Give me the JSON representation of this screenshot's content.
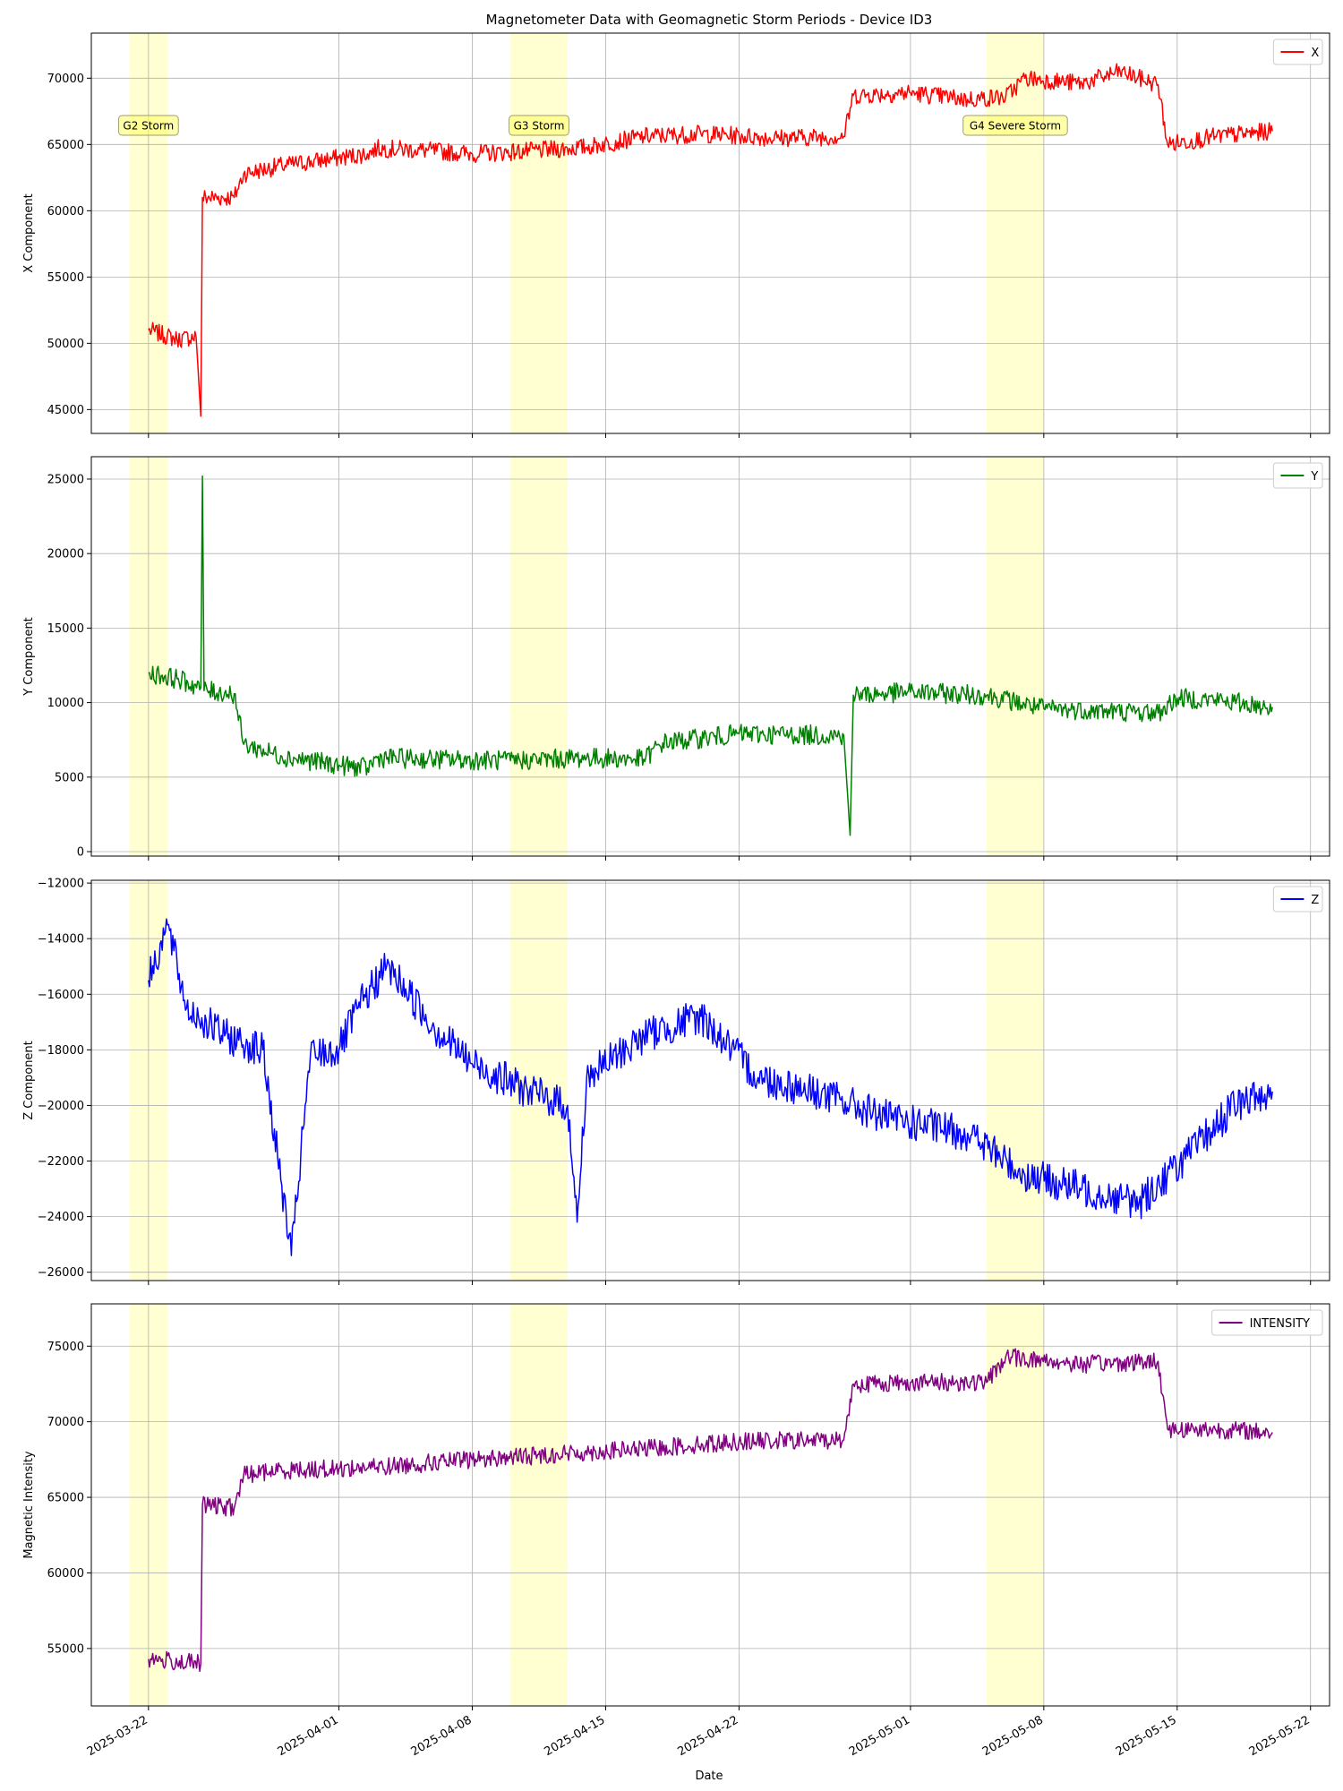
{
  "title": "Magnetometer Data with Geomagnetic Storm Periods - Device ID3",
  "xlabel": "Date",
  "x_tick_labels": [
    "2025-03-22",
    "2025-04-01",
    "2025-04-08",
    "2025-04-15",
    "2025-04-22",
    "2025-05-01",
    "2025-05-08",
    "2025-05-15",
    "2025-05-22"
  ],
  "chart_data": [
    {
      "type": "line",
      "series": [
        {
          "name": "X",
          "color": "#ff0000"
        }
      ],
      "ylabel": "X Component",
      "ylim": [
        43200,
        73400
      ],
      "y_ticks": [
        45000,
        50000,
        55000,
        60000,
        65000,
        70000
      ],
      "x_range": [
        "2025-03-19",
        "2025-05-23"
      ],
      "grid": true,
      "legend": "top-right",
      "storms": [
        {
          "start": "2025-03-21",
          "end": "2025-03-23",
          "label": "G2 Storm"
        },
        {
          "start": "2025-04-10",
          "end": "2025-04-13",
          "label": "G3 Storm"
        },
        {
          "start": "2025-05-05",
          "end": "2025-05-08",
          "label": "G4 Severe Storm"
        }
      ],
      "points": [
        [
          "2025-03-22T00:00",
          51000
        ],
        [
          "2025-03-23T12:00",
          50300
        ],
        [
          "2025-03-24T12:00",
          50500
        ],
        [
          "2025-03-24T18:00",
          44500
        ],
        [
          "2025-03-24T20:00",
          61000
        ],
        [
          "2025-03-26T12:00",
          61000
        ],
        [
          "2025-03-27T00:00",
          62800
        ],
        [
          "2025-03-29T00:00",
          63400
        ],
        [
          "2025-04-01T00:00",
          64000
        ],
        [
          "2025-04-02T12:00",
          64300
        ],
        [
          "2025-04-03T00:00",
          64700
        ],
        [
          "2025-04-05T00:00",
          64600
        ],
        [
          "2025-04-08T00:00",
          64300
        ],
        [
          "2025-04-11T00:00",
          64500
        ],
        [
          "2025-04-14T00:00",
          64800
        ],
        [
          "2025-04-17T00:00",
          65600
        ],
        [
          "2025-04-20T00:00",
          65800
        ],
        [
          "2025-04-24T00:00",
          65500
        ],
        [
          "2025-04-27T12:00",
          65600
        ],
        [
          "2025-04-28T00:00",
          68700
        ],
        [
          "2025-05-01T00:00",
          68900
        ],
        [
          "2025-05-04T00:00",
          68400
        ],
        [
          "2025-05-06T00:00",
          68600
        ],
        [
          "2025-05-07T00:00",
          70000
        ],
        [
          "2025-05-10T00:00",
          69600
        ],
        [
          "2025-05-12T00:00",
          70500
        ],
        [
          "2025-05-14T00:00",
          69500
        ],
        [
          "2025-05-14T12:00",
          65000
        ],
        [
          "2025-05-17T00:00",
          65600
        ],
        [
          "2025-05-20T00:00",
          66000
        ]
      ]
    },
    {
      "type": "line",
      "series": [
        {
          "name": "Y",
          "color": "#008000"
        }
      ],
      "ylabel": "Y Component",
      "ylim": [
        -300,
        26500
      ],
      "y_ticks": [
        0,
        5000,
        10000,
        15000,
        20000,
        25000
      ],
      "x_range": [
        "2025-03-19",
        "2025-05-23"
      ],
      "grid": true,
      "legend": "top-right",
      "points": [
        [
          "2025-03-22T00:00",
          12000
        ],
        [
          "2025-03-23T12:00",
          11600
        ],
        [
          "2025-03-24T18:00",
          11000
        ],
        [
          "2025-03-24T20:00",
          25200
        ],
        [
          "2025-03-24T22:00",
          10800
        ],
        [
          "2025-03-26T12:00",
          10600
        ],
        [
          "2025-03-27T00:00",
          7200
        ],
        [
          "2025-03-29T00:00",
          6400
        ],
        [
          "2025-04-01T00:00",
          5800
        ],
        [
          "2025-04-02T12:00",
          5600
        ],
        [
          "2025-04-03T00:00",
          6300
        ],
        [
          "2025-04-06T00:00",
          6200
        ],
        [
          "2025-04-10T00:00",
          6100
        ],
        [
          "2025-04-14T00:00",
          6300
        ],
        [
          "2025-04-17T00:00",
          6200
        ],
        [
          "2025-04-18T00:00",
          7300
        ],
        [
          "2025-04-22T00:00",
          7900
        ],
        [
          "2025-04-27T12:00",
          7800
        ],
        [
          "2025-04-27T20:00",
          1100
        ],
        [
          "2025-04-28T00:00",
          10500
        ],
        [
          "2025-05-01T00:00",
          10700
        ],
        [
          "2025-05-05T00:00",
          10500
        ],
        [
          "2025-05-08T00:00",
          9600
        ],
        [
          "2025-05-14T00:00",
          9300
        ],
        [
          "2025-05-15T00:00",
          10300
        ],
        [
          "2025-05-17T00:00",
          10200
        ],
        [
          "2025-05-20T00:00",
          9700
        ]
      ]
    },
    {
      "type": "line",
      "series": [
        {
          "name": "Z",
          "color": "#0000ff"
        }
      ],
      "ylabel": "Z Component",
      "ylim": [
        -26300,
        -11900
      ],
      "y_ticks": [
        -12000,
        -14000,
        -16000,
        -18000,
        -20000,
        -22000,
        -24000,
        -26000
      ],
      "x_range": [
        "2025-03-19",
        "2025-05-23"
      ],
      "grid": true,
      "legend": "top-right",
      "points": [
        [
          "2025-03-22T00:00",
          -15500
        ],
        [
          "2025-03-23T00:00",
          -13500
        ],
        [
          "2025-03-24T00:00",
          -16500
        ],
        [
          "2025-03-26T00:00",
          -17500
        ],
        [
          "2025-03-28T00:00",
          -18000
        ],
        [
          "2025-03-29T12:00",
          -25400
        ],
        [
          "2025-03-30T12:00",
          -18200
        ],
        [
          "2025-04-01T00:00",
          -18000
        ],
        [
          "2025-04-02T00:00",
          -16500
        ],
        [
          "2025-04-03T12:00",
          -15000
        ],
        [
          "2025-04-04T12:00",
          -15800
        ],
        [
          "2025-04-06T00:00",
          -17200
        ],
        [
          "2025-04-08T00:00",
          -18500
        ],
        [
          "2025-04-11T00:00",
          -19500
        ],
        [
          "2025-04-13T00:00",
          -20000
        ],
        [
          "2025-04-13T12:00",
          -24200
        ],
        [
          "2025-04-14T00:00",
          -19000
        ],
        [
          "2025-04-17T00:00",
          -17500
        ],
        [
          "2025-04-20T00:00",
          -16800
        ],
        [
          "2025-04-23T00:00",
          -19000
        ],
        [
          "2025-04-26T00:00",
          -19500
        ],
        [
          "2025-04-30T00:00",
          -20500
        ],
        [
          "2025-05-04T00:00",
          -21000
        ],
        [
          "2025-05-07T00:00",
          -22500
        ],
        [
          "2025-05-10T00:00",
          -23000
        ],
        [
          "2025-05-13T00:00",
          -23500
        ],
        [
          "2025-05-16T00:00",
          -21500
        ],
        [
          "2025-05-18T00:00",
          -20000
        ],
        [
          "2025-05-20T00:00",
          -19500
        ]
      ]
    },
    {
      "type": "line",
      "series": [
        {
          "name": "INTENSITY",
          "color": "#800080"
        }
      ],
      "ylabel": "Magnetic Intensity",
      "ylim": [
        51200,
        77800
      ],
      "y_ticks": [
        55000,
        60000,
        65000,
        70000,
        75000
      ],
      "x_range": [
        "2025-03-19",
        "2025-05-23"
      ],
      "grid": true,
      "legend": "top-right",
      "points": [
        [
          "2025-03-22T00:00",
          54300
        ],
        [
          "2025-03-24T18:00",
          54000
        ],
        [
          "2025-03-24T20:00",
          64500
        ],
        [
          "2025-03-26T12:00",
          64300
        ],
        [
          "2025-03-27T00:00",
          66500
        ],
        [
          "2025-03-29T00:00",
          66800
        ],
        [
          "2025-04-01T00:00",
          66900
        ],
        [
          "2025-04-03T00:00",
          67000
        ],
        [
          "2025-04-08T00:00",
          67500
        ],
        [
          "2025-04-13T00:00",
          67900
        ],
        [
          "2025-04-17T00:00",
          68200
        ],
        [
          "2025-04-22T00:00",
          68700
        ],
        [
          "2025-04-27T12:00",
          68800
        ],
        [
          "2025-04-28T00:00",
          72500
        ],
        [
          "2025-05-01T00:00",
          72600
        ],
        [
          "2025-05-05T00:00",
          72600
        ],
        [
          "2025-05-06T00:00",
          74300
        ],
        [
          "2025-05-10T00:00",
          73800
        ],
        [
          "2025-05-14T00:00",
          74000
        ],
        [
          "2025-05-14T12:00",
          69500
        ],
        [
          "2025-05-17T00:00",
          69500
        ],
        [
          "2025-05-20T00:00",
          69300
        ]
      ]
    }
  ]
}
